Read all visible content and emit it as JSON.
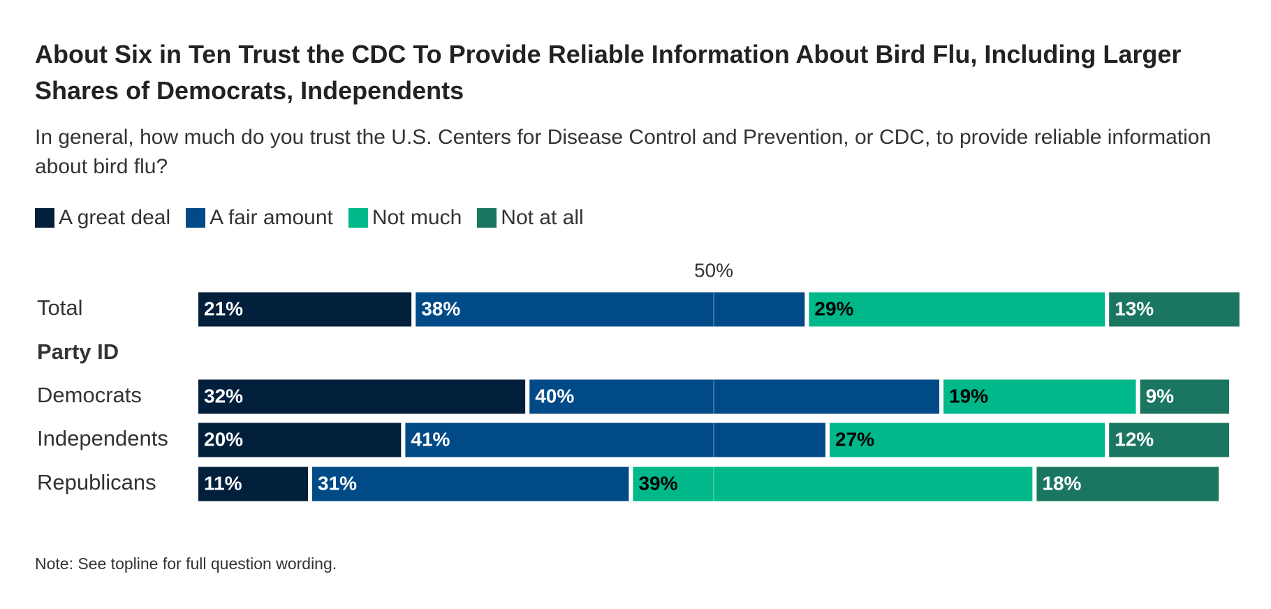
{
  "chart_data": {
    "type": "stacked-bar-horizontal",
    "title": "About Six in Ten Trust the CDC To Provide Reliable Information About Bird Flu, Including Larger Shares of Democrats, Independents",
    "subtitle": "In general, how much do you trust the U.S. Centers for Disease Control and Prevention, or CDC, to provide reliable information about bird flu?",
    "categories": [
      "Total",
      "Party ID",
      "Democrats",
      "Independents",
      "Republicans"
    ],
    "series": [
      {
        "name": "A great deal",
        "color": "#021f3b",
        "label_color": "#ffffff",
        "values": [
          21,
          null,
          32,
          20,
          11
        ],
        "value_labels": [
          "21%",
          null,
          "32%",
          "20%",
          "11%"
        ]
      },
      {
        "name": "A fair amount",
        "color": "#004b87",
        "label_color": "#ffffff",
        "values": [
          38,
          null,
          40,
          41,
          31
        ],
        "value_labels": [
          "38%",
          null,
          "40%",
          "41%",
          "31%"
        ]
      },
      {
        "name": "Not much",
        "color": "#00b88a",
        "label_color": "#000000",
        "values": [
          29,
          null,
          19,
          27,
          39
        ],
        "value_labels": [
          "29%",
          null,
          "19%",
          "27%",
          "39%"
        ]
      },
      {
        "name": "Not at all",
        "color": "#1b7661",
        "label_color": "#ffffff",
        "values": [
          13,
          null,
          9,
          12,
          18
        ],
        "value_labels": [
          "13%",
          null,
          "9%",
          "12%",
          "18%"
        ]
      }
    ],
    "xlim": [
      0,
      100
    ],
    "xticks": [
      {
        "value": 50,
        "label": "50%"
      }
    ],
    "note": "Note: See topline for full question wording."
  }
}
